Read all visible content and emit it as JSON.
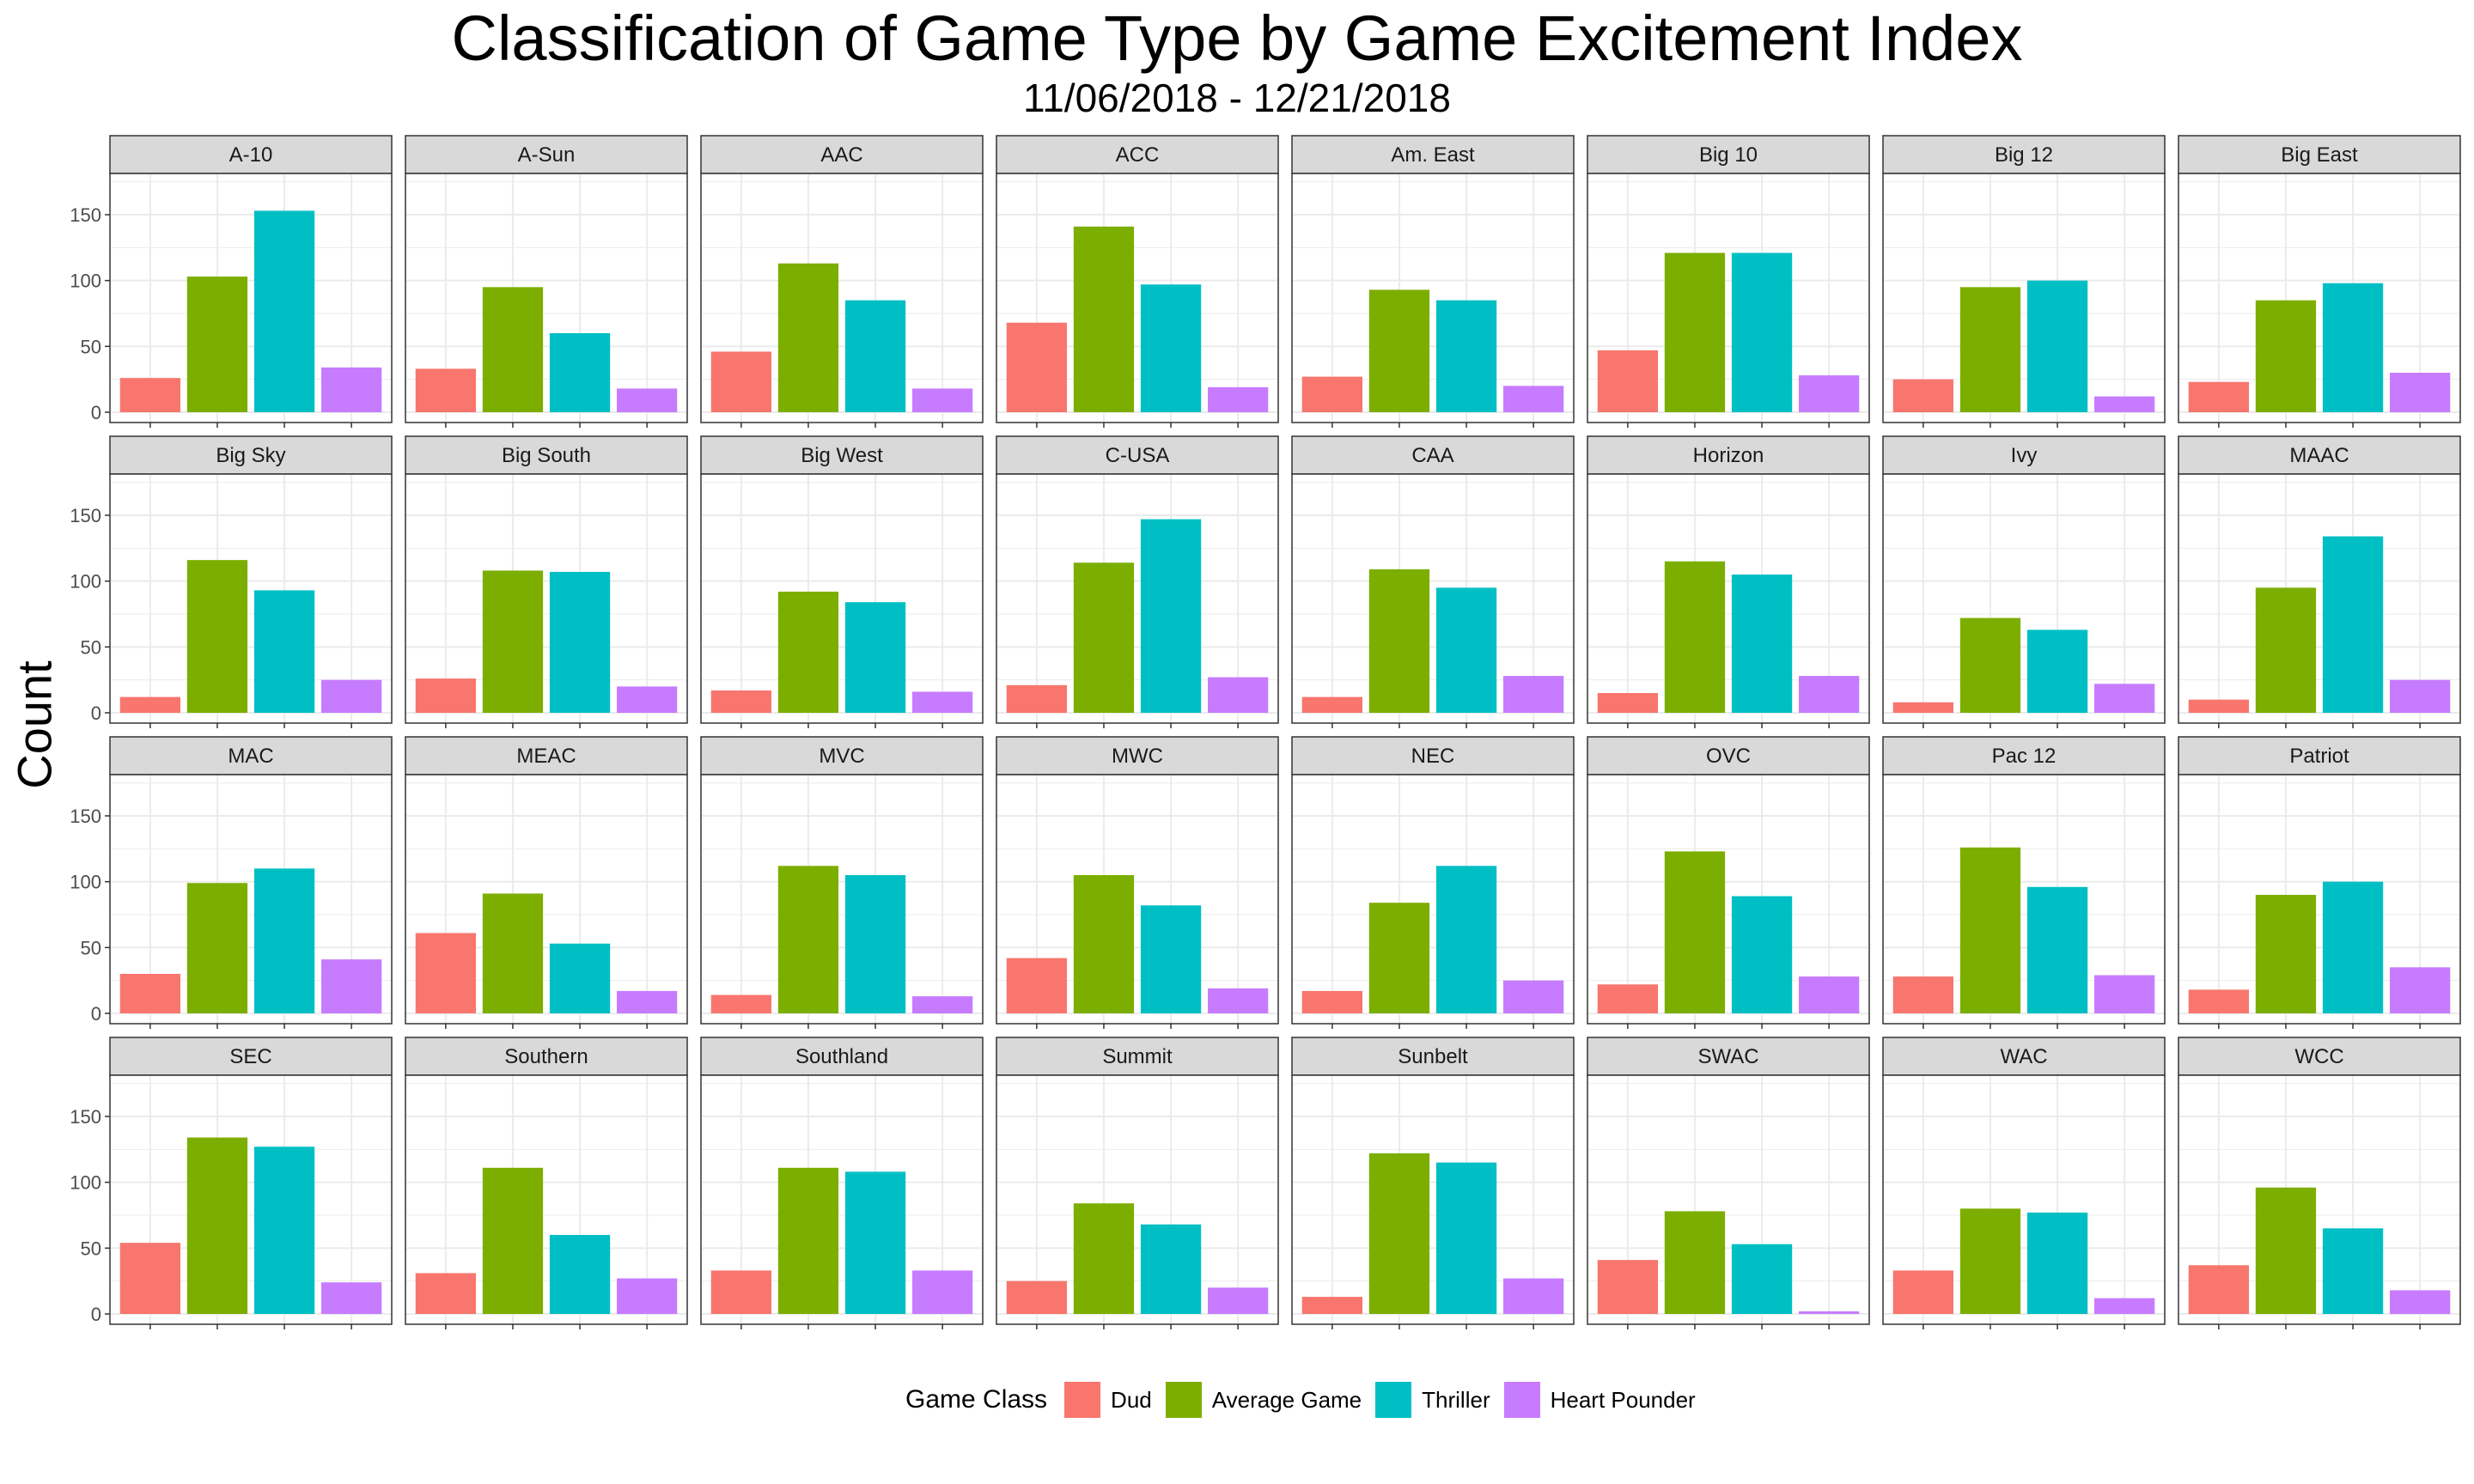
{
  "chart_data": {
    "type": "bar",
    "title": "Classification of Game Type by Game Excitement Index",
    "subtitle": "11/06/2018 - 12/21/2018",
    "ylabel": "Count",
    "xlabel": "",
    "ylim": [
      0,
      180
    ],
    "yticks": [
      0,
      50,
      100,
      150
    ],
    "grid": true,
    "legend": {
      "title": "Game Class",
      "placement": "bottom"
    },
    "categories": [
      "Dud",
      "Average Game",
      "Thriller",
      "Heart Pounder"
    ],
    "colors": [
      "#F8766D",
      "#7CAE00",
      "#00BFC4",
      "#C77CFF"
    ],
    "facets": [
      {
        "name": "A-10",
        "values": [
          26,
          103,
          153,
          34
        ]
      },
      {
        "name": "A-Sun",
        "values": [
          33,
          95,
          60,
          18
        ]
      },
      {
        "name": "AAC",
        "values": [
          46,
          113,
          85,
          18
        ]
      },
      {
        "name": "ACC",
        "values": [
          68,
          141,
          97,
          19
        ]
      },
      {
        "name": "Am. East",
        "values": [
          27,
          93,
          85,
          20
        ]
      },
      {
        "name": "Big 10",
        "values": [
          47,
          121,
          121,
          28
        ]
      },
      {
        "name": "Big 12",
        "values": [
          25,
          95,
          100,
          12
        ]
      },
      {
        "name": "Big East",
        "values": [
          23,
          85,
          98,
          30
        ]
      },
      {
        "name": "Big Sky",
        "values": [
          12,
          116,
          93,
          25
        ]
      },
      {
        "name": "Big South",
        "values": [
          26,
          108,
          107,
          20
        ]
      },
      {
        "name": "Big West",
        "values": [
          17,
          92,
          84,
          16
        ]
      },
      {
        "name": "C-USA",
        "values": [
          21,
          114,
          147,
          27
        ]
      },
      {
        "name": "CAA",
        "values": [
          12,
          109,
          95,
          28
        ]
      },
      {
        "name": "Horizon",
        "values": [
          15,
          115,
          105,
          28
        ]
      },
      {
        "name": "Ivy",
        "values": [
          8,
          72,
          63,
          22
        ]
      },
      {
        "name": "MAAC",
        "values": [
          10,
          95,
          134,
          25
        ]
      },
      {
        "name": "MAC",
        "values": [
          30,
          99,
          110,
          41
        ]
      },
      {
        "name": "MEAC",
        "values": [
          61,
          91,
          53,
          17
        ]
      },
      {
        "name": "MVC",
        "values": [
          14,
          112,
          105,
          13
        ]
      },
      {
        "name": "MWC",
        "values": [
          42,
          105,
          82,
          19
        ]
      },
      {
        "name": "NEC",
        "values": [
          17,
          84,
          112,
          25
        ]
      },
      {
        "name": "OVC",
        "values": [
          22,
          123,
          89,
          28
        ]
      },
      {
        "name": "Pac 12",
        "values": [
          28,
          126,
          96,
          29
        ]
      },
      {
        "name": "Patriot",
        "values": [
          18,
          90,
          100,
          35
        ]
      },
      {
        "name": "SEC",
        "values": [
          54,
          134,
          127,
          24
        ]
      },
      {
        "name": "Southern",
        "values": [
          31,
          111,
          60,
          27
        ]
      },
      {
        "name": "Southland",
        "values": [
          33,
          111,
          108,
          33
        ]
      },
      {
        "name": "Summit",
        "values": [
          25,
          84,
          68,
          20
        ]
      },
      {
        "name": "Sunbelt",
        "values": [
          13,
          122,
          115,
          27
        ]
      },
      {
        "name": "SWAC",
        "values": [
          41,
          78,
          53,
          2
        ]
      },
      {
        "name": "WAC",
        "values": [
          33,
          80,
          77,
          12
        ]
      },
      {
        "name": "WCC",
        "values": [
          37,
          96,
          65,
          18
        ]
      }
    ]
  }
}
